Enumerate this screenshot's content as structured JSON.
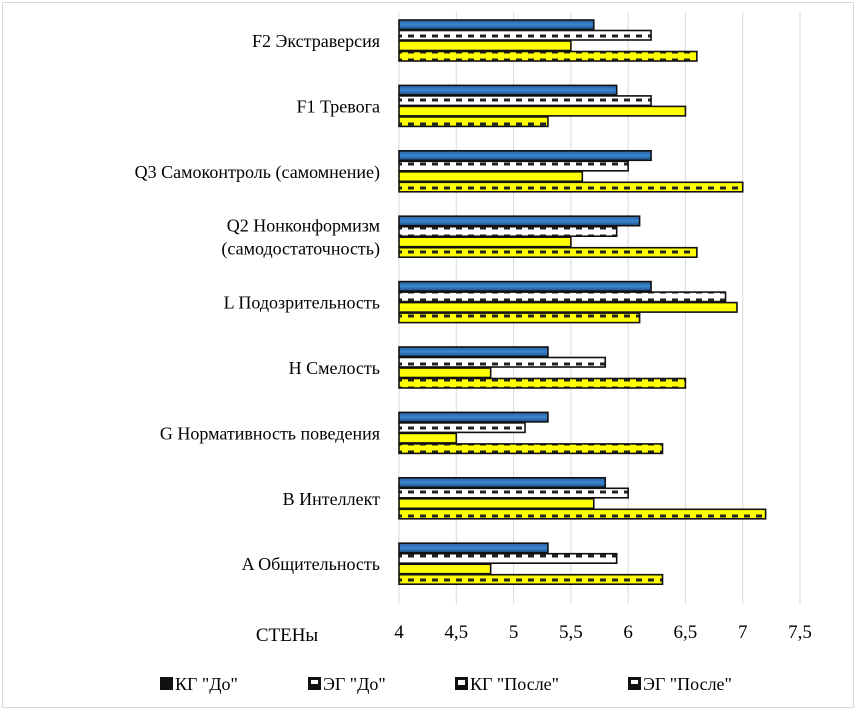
{
  "chart_data": {
    "type": "bar",
    "orientation": "horizontal",
    "categories": [
      "F2 Экстраверсия",
      "F1 Тревога",
      "Q3 Самоконтроль (самомнение)",
      "Q2 Нонконформизм (самодостаточность)",
      "L Подозрительность",
      "H Смелость",
      "G Нормативность поведения",
      "B Интеллект",
      "A Общительность"
    ],
    "category_lines": [
      [
        "F2 Экстраверсия"
      ],
      [
        "F1 Тревога"
      ],
      [
        "Q3 Самоконтроль (самомнение)"
      ],
      [
        "Q2 Нонконформизм",
        "(самодостаточность)"
      ],
      [
        "L Подозрительность"
      ],
      [
        "H Смелость"
      ],
      [
        "G Нормативность поведения"
      ],
      [
        "B Интеллект"
      ],
      [
        "A Общительность"
      ]
    ],
    "series": [
      {
        "name": "КГ  \"До\"",
        "values": [
          5.7,
          5.9,
          6.2,
          6.1,
          6.2,
          5.3,
          5.3,
          5.8,
          5.3
        ]
      },
      {
        "name": "ЭГ \"До\"",
        "values": [
          6.2,
          6.2,
          6.0,
          5.9,
          6.85,
          5.8,
          5.1,
          6.0,
          5.9
        ]
      },
      {
        "name": "КГ \"После\"",
        "values": [
          5.5,
          6.5,
          5.6,
          5.5,
          6.95,
          4.8,
          4.5,
          5.7,
          4.8
        ]
      },
      {
        "name": "ЭГ \"После\"",
        "values": [
          6.6,
          5.3,
          7.0,
          6.6,
          6.1,
          6.5,
          6.3,
          7.2,
          6.3
        ]
      }
    ],
    "series_colors": [
      "#2f6fb3",
      "#ffffff",
      "#ffff00",
      "#ffff00"
    ],
    "series_patterns": [
      "solid-blue",
      "white-dashed",
      "yellow-solid",
      "yellow-dashed"
    ],
    "xlabel": "СТЕНы",
    "xlim": [
      4,
      7.5
    ],
    "xticks": [
      "4",
      "4,5",
      "5",
      "5,5",
      "6",
      "6,5",
      "7",
      "7,5"
    ],
    "xtick_values": [
      4,
      4.5,
      5,
      5.5,
      6,
      6.5,
      7,
      7.5
    ],
    "grid": true,
    "legend_position": "bottom"
  }
}
